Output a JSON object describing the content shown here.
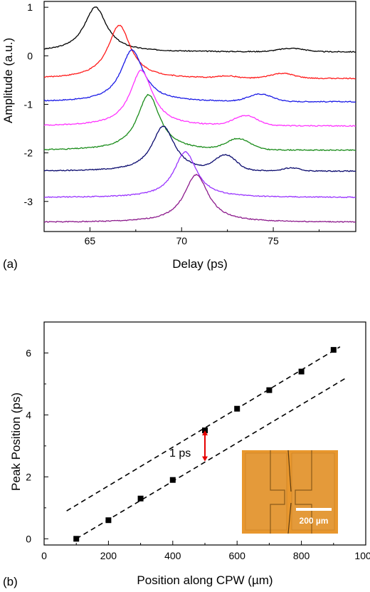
{
  "chart_data": [
    {
      "panel_label": "(a)",
      "type": "line",
      "xlabel": "Delay (ps)",
      "ylabel": "Amplitude (a.u.)",
      "xlim": [
        62.5,
        79.5
      ],
      "ylim": [
        -3.62,
        1.12
      ],
      "x_ticks": [
        65,
        70,
        75
      ],
      "y_ticks": [
        1,
        0,
        -1,
        -2,
        -3
      ],
      "y_tick_labels": [
        "1",
        "0",
        "-1",
        "-2",
        "-3"
      ],
      "grid": false,
      "legend": "none",
      "series": [
        {
          "color": "#000000",
          "baseline": 0.08,
          "peak_x": 65.3,
          "peak_y": 1.0,
          "width": 0.75,
          "bumps": [
            {
              "x": 76.0,
              "h": 0.07,
              "w": 1.0
            }
          ]
        },
        {
          "color": "#ff1a1a",
          "baseline": -0.47,
          "peak_x": 66.6,
          "peak_y": 0.63,
          "width": 0.75,
          "bumps": [
            {
              "x": 75.5,
              "h": 0.1,
              "w": 0.9
            },
            {
              "x": 72.5,
              "h": 0.04,
              "w": 0.7
            }
          ]
        },
        {
          "color": "#1a1ae6",
          "baseline": -0.95,
          "peak_x": 67.3,
          "peak_y": 0.12,
          "width": 0.75,
          "bumps": [
            {
              "x": 74.3,
              "h": 0.15,
              "w": 0.9
            }
          ]
        },
        {
          "color": "#ff33ff",
          "baseline": -1.45,
          "peak_x": 67.8,
          "peak_y": -0.3,
          "width": 0.75,
          "bumps": [
            {
              "x": 73.5,
              "h": 0.2,
              "w": 0.9
            }
          ]
        },
        {
          "color": "#1a8c1a",
          "baseline": -1.95,
          "peak_x": 68.2,
          "peak_y": -0.8,
          "width": 0.75,
          "bumps": [
            {
              "x": 73.1,
              "h": 0.22,
              "w": 0.9
            }
          ]
        },
        {
          "color": "#0a0a6e",
          "baseline": -2.38,
          "peak_x": 69.0,
          "peak_y": -1.45,
          "width": 0.75,
          "bumps": [
            {
              "x": 72.4,
              "h": 0.3,
              "w": 0.8
            },
            {
              "x": 76.0,
              "h": 0.06,
              "w": 0.6
            }
          ]
        },
        {
          "color": "#9933ff",
          "baseline": -2.92,
          "peak_x": 70.2,
          "peak_y": -1.98,
          "width": 0.75,
          "bumps": []
        },
        {
          "color": "#8c1a8c",
          "baseline": -3.43,
          "peak_x": 70.8,
          "peak_y": -2.45,
          "width": 0.8,
          "bumps": []
        }
      ]
    },
    {
      "panel_label": "(b)",
      "type": "scatter",
      "xlabel": "Position along CPW (µm)",
      "ylabel": "Peak Position (ps)",
      "xlim": [
        0,
        1000
      ],
      "ylim": [
        -0.2,
        7.0
      ],
      "x_ticks": [
        0,
        200,
        400,
        600,
        800,
        1000
      ],
      "y_ticks": [
        0,
        2,
        4,
        6
      ],
      "grid": false,
      "legend": "none",
      "points": [
        {
          "x": 100,
          "y": 0.0
        },
        {
          "x": 200,
          "y": 0.6
        },
        {
          "x": 300,
          "y": 1.3
        },
        {
          "x": 400,
          "y": 1.9
        },
        {
          "x": 500,
          "y": 3.5
        },
        {
          "x": 600,
          "y": 4.2
        },
        {
          "x": 700,
          "y": 4.8
        },
        {
          "x": 800,
          "y": 5.4
        },
        {
          "x": 900,
          "y": 6.1
        }
      ],
      "fit_lines": [
        {
          "x0": 70,
          "y0": 0.9,
          "x1": 920,
          "y1": 6.2
        },
        {
          "x0": 100,
          "y0": 0.0,
          "x1": 940,
          "y1": 5.2
        }
      ],
      "arrow": {
        "x": 500,
        "y_from": 2.5,
        "y_to": 3.5,
        "color": "#e60000",
        "label": "1 ps"
      },
      "inset": {
        "scale_bar_label": "200 µm"
      }
    }
  ]
}
